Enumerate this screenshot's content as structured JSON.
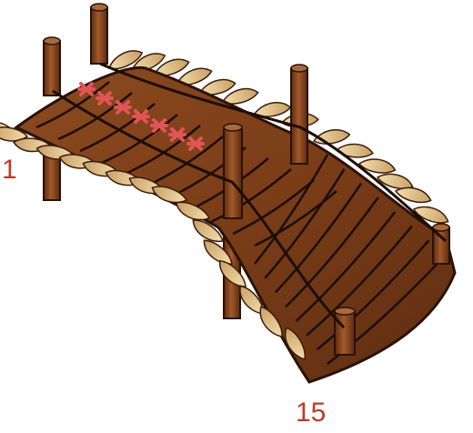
{
  "labels": {
    "start": "1",
    "end": "15"
  },
  "marks": {
    "count": 7,
    "color": "#e05555"
  },
  "colors": {
    "plank_dark": "#5e2e12",
    "plank_mid": "#7a3d18",
    "plank_light": "#9a5a2c",
    "post": "#8a4a22",
    "post_shadow": "#5a2a10",
    "spike_light": "#f0d9a6",
    "spike_shade": "#d2b07a",
    "rope": "#1c0e06",
    "label": "#c0392b"
  }
}
